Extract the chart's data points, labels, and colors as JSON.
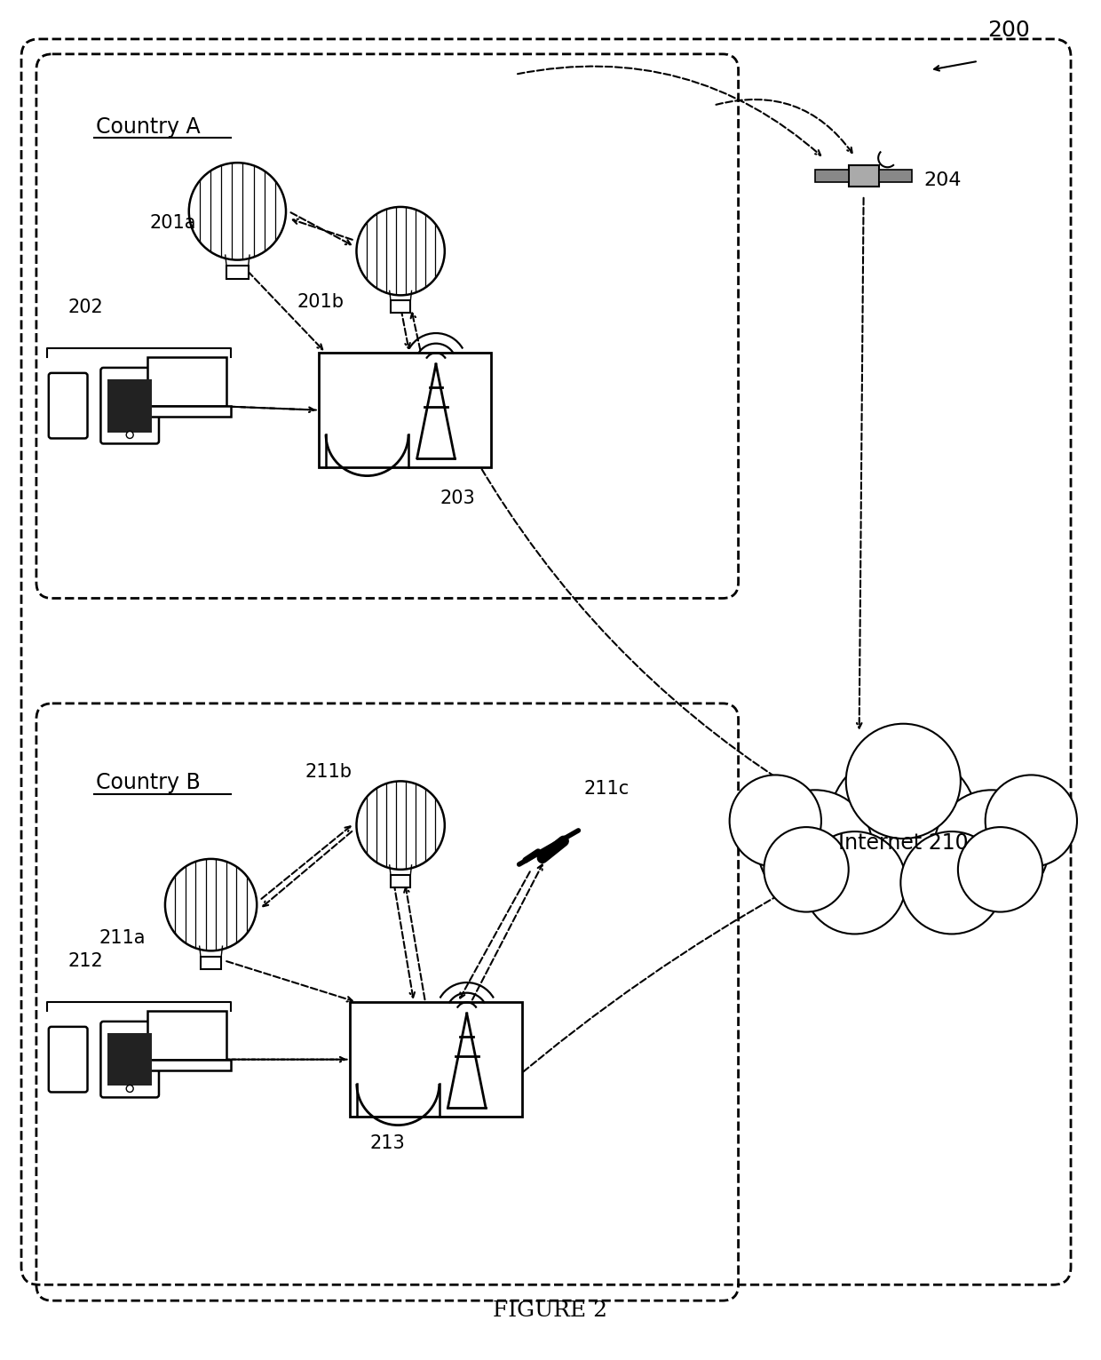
{
  "title": "FIGURE 2",
  "background_color": "#ffffff",
  "fig_width": 12.4,
  "fig_height": 15.31,
  "label_200": "200",
  "label_201a": "201a",
  "label_201b": "201b",
  "label_202": "202",
  "label_203": "203",
  "label_204": "204",
  "label_210": "Internet 210",
  "label_211a": "211a",
  "label_211b": "211b",
  "label_211c": "211c",
  "label_212": "212",
  "label_213": "213",
  "country_a": "Country A",
  "country_b": "Country B"
}
